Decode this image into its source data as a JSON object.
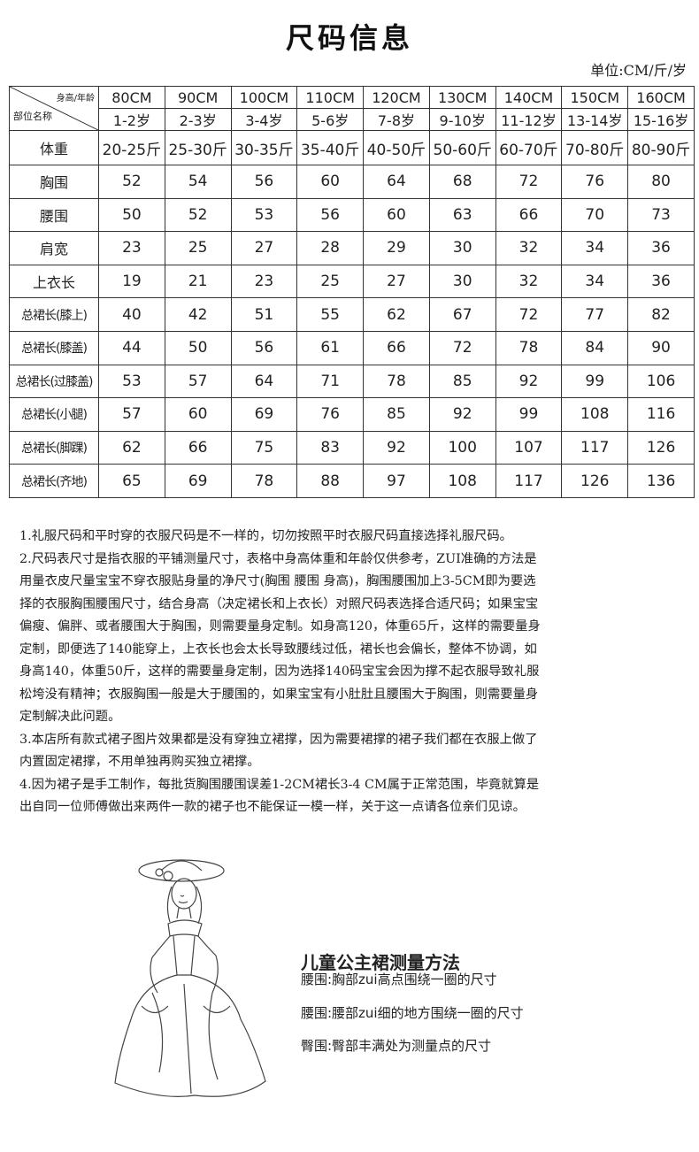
{
  "title": "尺码信息",
  "unit": "单位:CM/斤/岁",
  "table": {
    "corner_top": "身高/年龄",
    "corner_bottom": "部位名称",
    "heights": [
      "80CM",
      "90CM",
      "100CM",
      "110CM",
      "120CM",
      "130CM",
      "140CM",
      "150CM",
      "160CM"
    ],
    "ages": [
      "1-2岁",
      "2-3岁",
      "3-4岁",
      "5-6岁",
      "7-8岁",
      "9-10岁",
      "11-12岁",
      "13-14岁",
      "15-16岁"
    ],
    "weight_label": "体重",
    "weights": [
      "20-25斤",
      "25-30斤",
      "30-35斤",
      "35-40斤",
      "40-50斤",
      "50-60斤",
      "60-70斤",
      "70-80斤",
      "80-90斤"
    ],
    "rows": [
      {
        "label": "胸围",
        "values": [
          "52",
          "54",
          "56",
          "60",
          "64",
          "68",
          "72",
          "76",
          "80"
        ]
      },
      {
        "label": "腰围",
        "values": [
          "50",
          "52",
          "53",
          "56",
          "60",
          "63",
          "66",
          "70",
          "73"
        ]
      },
      {
        "label": "肩宽",
        "values": [
          "23",
          "25",
          "27",
          "28",
          "29",
          "30",
          "32",
          "34",
          "36"
        ]
      },
      {
        "label": "上衣长",
        "values": [
          "19",
          "21",
          "23",
          "25",
          "27",
          "30",
          "32",
          "34",
          "36"
        ]
      },
      {
        "label": "总裙长(膝上)",
        "values": [
          "40",
          "42",
          "51",
          "55",
          "62",
          "67",
          "72",
          "77",
          "82"
        ]
      },
      {
        "label": "总裙长(膝盖)",
        "values": [
          "44",
          "50",
          "56",
          "61",
          "66",
          "72",
          "78",
          "84",
          "90"
        ]
      },
      {
        "label": "总裙长(过膝盖)",
        "values": [
          "53",
          "57",
          "64",
          "71",
          "78",
          "85",
          "92",
          "99",
          "106"
        ]
      },
      {
        "label": "总裙长(小腿)",
        "values": [
          "57",
          "60",
          "69",
          "76",
          "85",
          "92",
          "99",
          "108",
          "116"
        ]
      },
      {
        "label": "总裙长(脚踝)",
        "values": [
          "62",
          "66",
          "75",
          "83",
          "92",
          "100",
          "107",
          "117",
          "126"
        ]
      },
      {
        "label": "总裙长(齐地)",
        "values": [
          "65",
          "69",
          "78",
          "88",
          "97",
          "108",
          "117",
          "126",
          "136"
        ]
      }
    ]
  },
  "notes": [
    "1.礼服尺码和平时穿的衣服尺码是不一样的，切勿按照平时衣服尺码直接选择礼服尺码。",
    "2.尺码表尺寸是指衣服的平铺测量尺寸，表格中身高体重和年龄仅供参考，ZUI准确的方法是",
    "用量衣皮尺量宝宝不穿衣服贴身量的净尺寸(胸围 腰围 身高)，胸围腰围加上3-5CM即为要选",
    "择的衣服胸围腰围尺寸，结合身高（决定裙长和上衣长）对照尺码表选择合适尺码；如果宝宝",
    "偏瘦、偏胖、或者腰围大于胸围，则需要量身定制。如身高120，体重65斤，这样的需要量身",
    "定制，即便选了140能穿上，上衣长也会太长导致腰线过低，裙长也会偏长，整体不协调，如",
    "身高140，体重50斤，这样的需要量身定制，因为选择140码宝宝会因为撑不起衣服导致礼服",
    "松垮没有精神；衣服胸围一般是大于腰围的，如果宝宝有小肚肚且腰围大于胸围，则需要量身",
    "定制解决此问题。",
    "3.本店所有款式裙子图片效果都是没有穿独立裙撑，因为需要裙撑的裙子我们都在衣服上做了",
    "内置固定裙撑，不用单独再购买独立裙撑。",
    "4.因为裙子是手工制作，每批货胸围腰围误差1-2CM裙长3-4 CM属于正常范围，毕竟就算是",
    "出自同一位师傅做出来两件一款的裙子也不能保证一模一样，关于这一点请各位亲们见谅。"
  ],
  "measure": {
    "title": "儿童公主裙测量方法",
    "lines": [
      "腰围:胸部zui高点围绕一圈的尺寸",
      "腰围:腰部zui细的地方围绕一圈的尺寸",
      "臀围:臀部丰满处为测量点的尺寸"
    ]
  }
}
